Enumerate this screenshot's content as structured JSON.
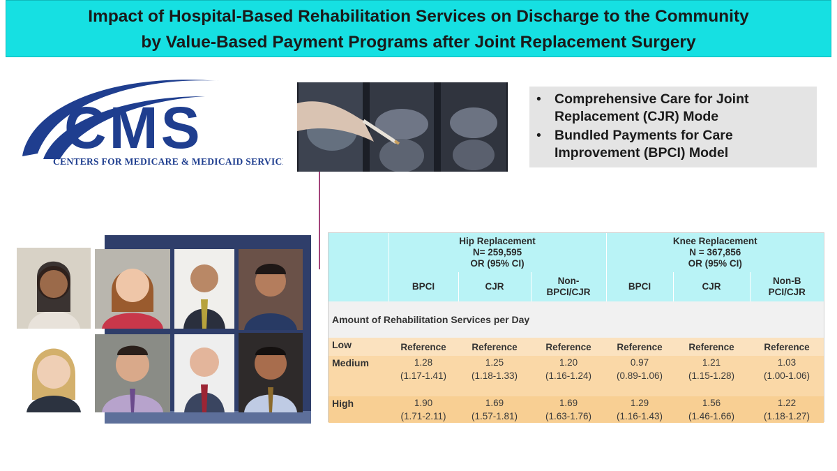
{
  "title": {
    "line1": "Impact of Hospital-Based Rehabilitation Services on Discharge to the Community",
    "line2": "by Value-Based Payment Programs after Joint Replacement Surgery"
  },
  "logo": {
    "wordmark": "CMS",
    "subtitle": "CENTERS FOR MEDICARE & MEDICAID SERVICES",
    "color": "#1f3e8f"
  },
  "bullets": [
    "Comprehensive Care for Joint Replacement (CJR) Mode",
    "Bundled Payments for Care Improvement (BPCI) Model"
  ],
  "table": {
    "groups": [
      {
        "name": "Hip Replacement",
        "n": "N= 259,595",
        "stat": "OR (95% CI)"
      },
      {
        "name": "Knee Replacement",
        "n": "N = 367,856",
        "stat": "OR (95% CI)"
      }
    ],
    "columns": [
      "BPCI",
      "CJR",
      "Non-\nBPCI/CJR",
      "BPCI",
      "CJR",
      "Non-B\nPCI/CJR"
    ],
    "section": "Amount of Rehabilitation Services per Day",
    "rows": [
      {
        "label": "Low",
        "cells": [
          "Reference",
          "Reference",
          "Reference",
          "Reference",
          "Reference",
          "Reference"
        ]
      },
      {
        "label": "Medium",
        "cells": [
          [
            "1.28",
            "(1.17-1.41)"
          ],
          [
            "1.25",
            "(1.18-1.33)"
          ],
          [
            "1.20",
            "(1.16-1.24)"
          ],
          [
            "0.97",
            "(0.89-1.06)"
          ],
          [
            "1.21",
            "(1.15-1.28)"
          ],
          [
            "1.03",
            "(1.00-1.06)"
          ]
        ]
      },
      {
        "label": "High",
        "cells": [
          [
            "1.90",
            "(1.71-2.11)"
          ],
          [
            "1.69",
            "(1.57-1.81)"
          ],
          [
            "1.69",
            "(1.63-1.76)"
          ],
          [
            "1.29",
            "(1.16-1.43)"
          ],
          [
            "1.56",
            "(1.46-1.66)"
          ],
          [
            "1.22",
            "(1.18-1.27)"
          ]
        ]
      }
    ]
  },
  "colors": {
    "banner": "#16e0e2",
    "header": "#b9f3f6",
    "accent": "#a3457b"
  }
}
